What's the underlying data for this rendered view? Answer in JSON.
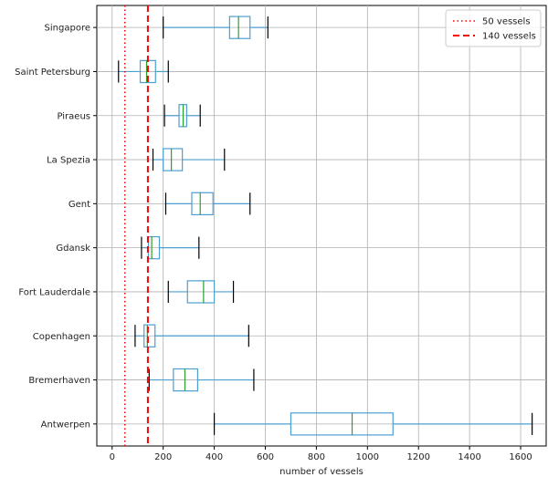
{
  "chart_data": {
    "type": "box",
    "orientation": "horizontal",
    "xlabel": "number of vessels",
    "ylabel": "",
    "xlim": [
      -60,
      1700
    ],
    "xticks": [
      0,
      200,
      400,
      600,
      800,
      1000,
      1200,
      1400,
      1600
    ],
    "grid": true,
    "legend_placement": "top-right",
    "categories": [
      "Singapore",
      "Saint Petersburg",
      "Piraeus",
      "La Spezia",
      "Gent",
      "Gdansk",
      "Fort Lauderdale",
      "Copenhagen",
      "Bremerhaven",
      "Antwerpen"
    ],
    "boxes": [
      {
        "category": "Singapore",
        "whisker_low": 200,
        "q1": 460,
        "median": 495,
        "q3": 540,
        "whisker_high": 610
      },
      {
        "category": "Saint Petersburg",
        "whisker_low": 25,
        "q1": 110,
        "median": 135,
        "q3": 170,
        "whisker_high": 220
      },
      {
        "category": "Piraeus",
        "whisker_low": 205,
        "q1": 262,
        "median": 278,
        "q3": 292,
        "whisker_high": 345
      },
      {
        "category": "La Spezia",
        "whisker_low": 160,
        "q1": 200,
        "median": 232,
        "q3": 275,
        "whisker_high": 440
      },
      {
        "category": "Gent",
        "whisker_low": 210,
        "q1": 312,
        "median": 345,
        "q3": 395,
        "whisker_high": 540
      },
      {
        "category": "Gdansk",
        "whisker_low": 115,
        "q1": 142,
        "median": 155,
        "q3": 185,
        "whisker_high": 340
      },
      {
        "category": "Fort Lauderdale",
        "whisker_low": 220,
        "q1": 295,
        "median": 358,
        "q3": 400,
        "whisker_high": 475
      },
      {
        "category": "Copenhagen",
        "whisker_low": 90,
        "q1": 125,
        "median": 138,
        "q3": 168,
        "whisker_high": 535
      },
      {
        "category": "Bremerhaven",
        "whisker_low": 145,
        "q1": 240,
        "median": 285,
        "q3": 335,
        "whisker_high": 555
      },
      {
        "category": "Antwerpen",
        "whisker_low": 400,
        "q1": 700,
        "median": 940,
        "q3": 1100,
        "whisker_high": 1645
      }
    ],
    "reference_lines": [
      {
        "name": "50 vessels",
        "value": 50,
        "color": "#ff0000",
        "style": "dotted"
      },
      {
        "name": "140 vessels",
        "value": 140,
        "color": "#ff0000",
        "style": "dashed"
      }
    ],
    "colors": {
      "box": "#4c9fd0",
      "median": "#2ca02c",
      "whisker_cap": "#000000",
      "grid": "#b0b0b0"
    }
  }
}
